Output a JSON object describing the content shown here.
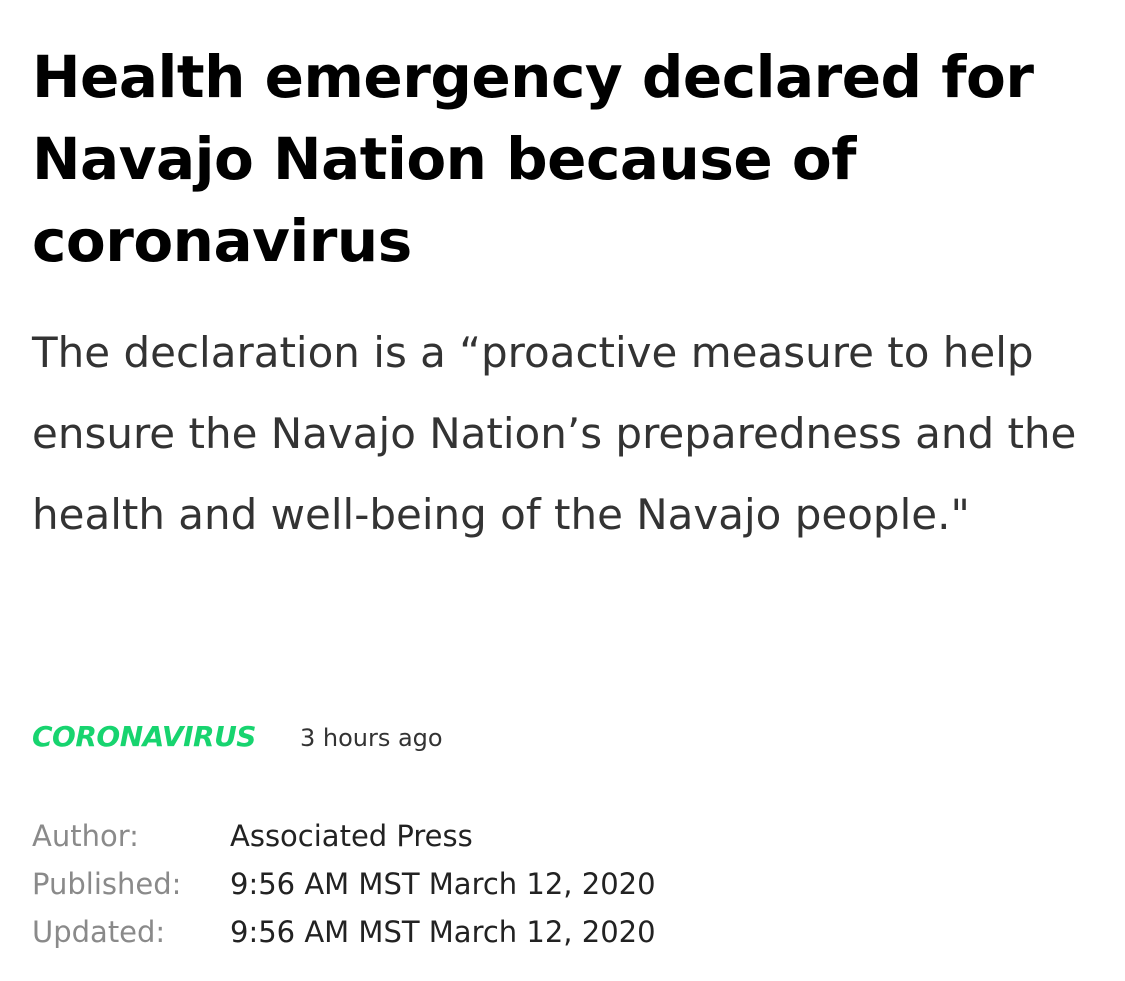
{
  "article": {
    "headline": "Health emergency declared for Navajo Nation because of coronavirus",
    "summary": "The declaration is a “proactive measure to help ensure the Navajo Nation’s preparedness and the health and well-being of the Navajo people.\"",
    "category": "CORONAVIRUS",
    "time_ago": "3 hours ago",
    "details": [
      {
        "label": "Author:",
        "value": "Associated Press"
      },
      {
        "label": "Published:",
        "value": "9:56 AM MST March 12, 2020"
      },
      {
        "label": "Updated:",
        "value": "9:56 AM MST March 12, 2020"
      }
    ]
  },
  "colors": {
    "category": "#17d46f",
    "headline": "#000000",
    "summary": "#333333",
    "label": "#8a8a8a"
  }
}
